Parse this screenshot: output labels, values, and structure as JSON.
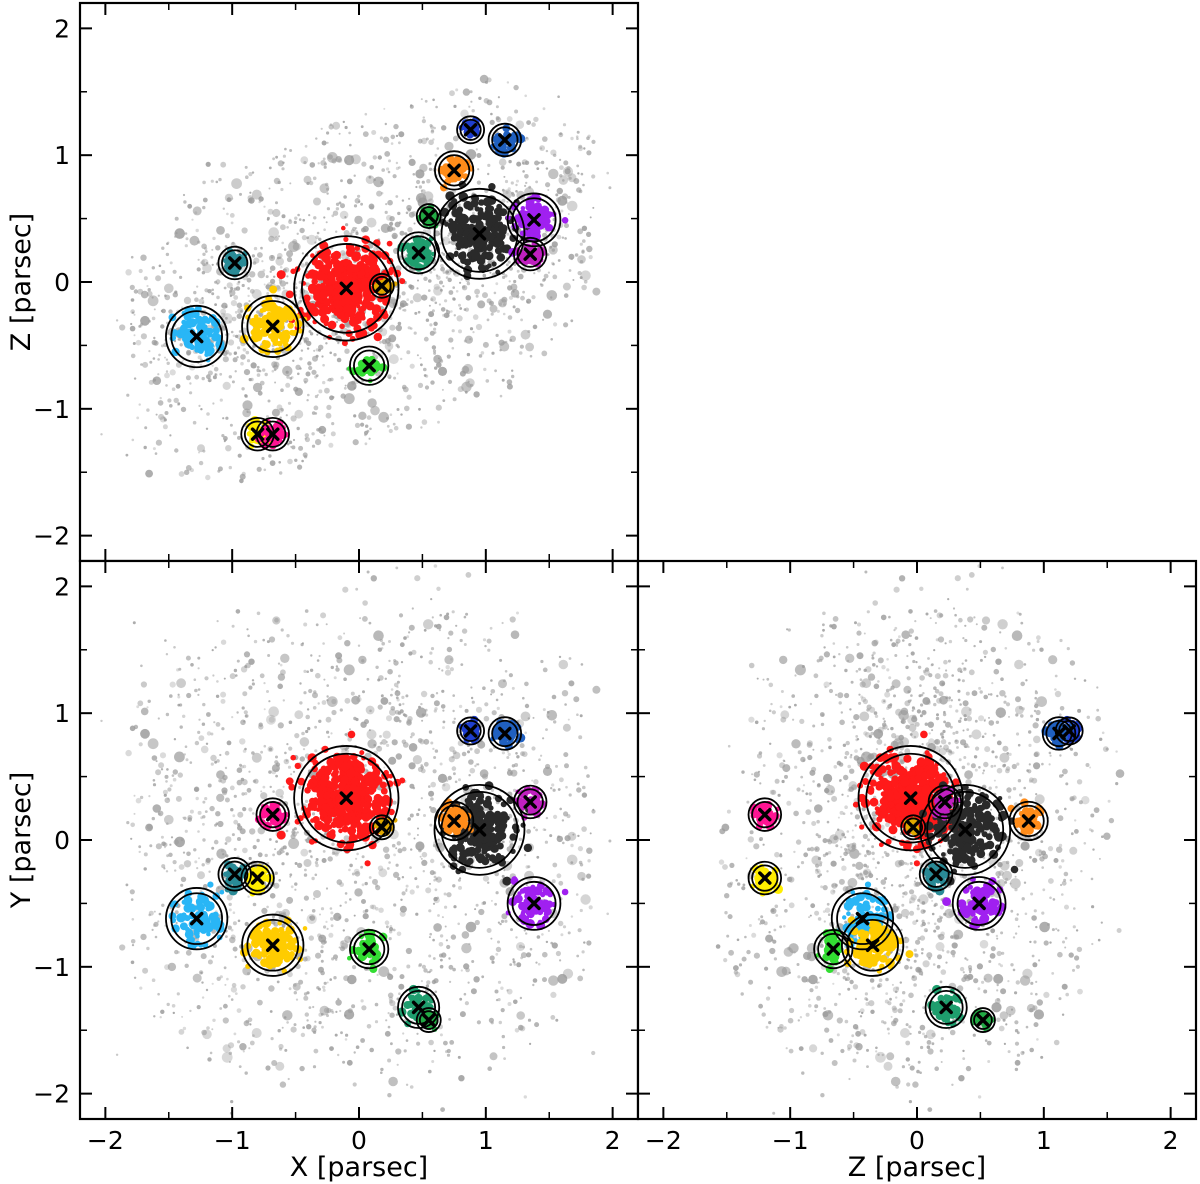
{
  "chart_data": {
    "type": "scatter",
    "description_panels": [
      "X-Z",
      "X-Y",
      "Z-Y"
    ],
    "ticks": [
      -2,
      -1,
      0,
      1,
      2
    ],
    "tick_labels": [
      "−2",
      "−1",
      "0",
      "1",
      "2"
    ],
    "range": [
      -2.2,
      2.2
    ],
    "xlabels": {
      "XZ": "",
      "XY": "X [parsec]",
      "ZY": "Z [parsec]"
    },
    "ylabels": {
      "XZ": "Z [parsec]",
      "XY": "Y [parsec]",
      "ZY": ""
    },
    "background_color": "#9a9a9a",
    "background_pattern": "diffuse grey field of stars spanning roughly -1.9 to 1.9 parsec",
    "groups": [
      {
        "name": "red",
        "color": "#ff1a1a",
        "x": -0.1,
        "y": 0.33,
        "z": -0.05,
        "r": 0.35,
        "n": 420
      },
      {
        "name": "dark-grey",
        "color": "#2a2a2a",
        "x": 0.95,
        "y": 0.08,
        "z": 0.38,
        "r": 0.3,
        "n": 200
      },
      {
        "name": "sky-blue",
        "color": "#29b6f6",
        "x": -1.28,
        "y": -0.62,
        "z": -0.43,
        "r": 0.2,
        "n": 90
      },
      {
        "name": "gold",
        "color": "#ffcc00",
        "x": -0.68,
        "y": -0.83,
        "z": -0.35,
        "r": 0.2,
        "n": 110
      },
      {
        "name": "teal",
        "color": "#2a8a96",
        "x": -0.98,
        "y": -0.27,
        "z": 0.15,
        "r": 0.1,
        "n": 40
      },
      {
        "name": "yellow",
        "color": "#ffee00",
        "x": -0.8,
        "y": -0.3,
        "z": -1.2,
        "r": 0.1,
        "n": 35
      },
      {
        "name": "pink",
        "color": "#ff1493",
        "x": -0.68,
        "y": 0.2,
        "z": -1.2,
        "r": 0.1,
        "n": 45
      },
      {
        "name": "small-gold",
        "color": "#e0a800",
        "x": 0.18,
        "y": 0.1,
        "z": -0.03,
        "r": 0.07,
        "n": 20
      },
      {
        "name": "lime",
        "color": "#33dd33",
        "x": 0.08,
        "y": -0.86,
        "z": -0.66,
        "r": 0.12,
        "n": 40
      },
      {
        "name": "sea-green",
        "color": "#1f9e6e",
        "x": 0.47,
        "y": -1.32,
        "z": 0.23,
        "r": 0.13,
        "n": 55
      },
      {
        "name": "green",
        "color": "#22aa44",
        "x": 0.55,
        "y": -1.42,
        "z": 0.52,
        "r": 0.07,
        "n": 25
      },
      {
        "name": "orange",
        "color": "#ff8c1a",
        "x": 0.75,
        "y": 0.15,
        "z": 0.88,
        "r": 0.12,
        "n": 45
      },
      {
        "name": "royal-blue",
        "color": "#1f3fcf",
        "x": 0.88,
        "y": 0.86,
        "z": 1.2,
        "r": 0.08,
        "n": 30
      },
      {
        "name": "steel-blue",
        "color": "#2060c0",
        "x": 1.15,
        "y": 0.84,
        "z": 1.12,
        "r": 0.1,
        "n": 40
      },
      {
        "name": "violet",
        "color": "#a020f0",
        "x": 1.38,
        "y": -0.5,
        "z": 0.49,
        "r": 0.17,
        "n": 75
      },
      {
        "name": "magenta",
        "color": "#c020c0",
        "x": 1.35,
        "y": 0.3,
        "z": 0.22,
        "r": 0.1,
        "n": 40
      }
    ]
  }
}
